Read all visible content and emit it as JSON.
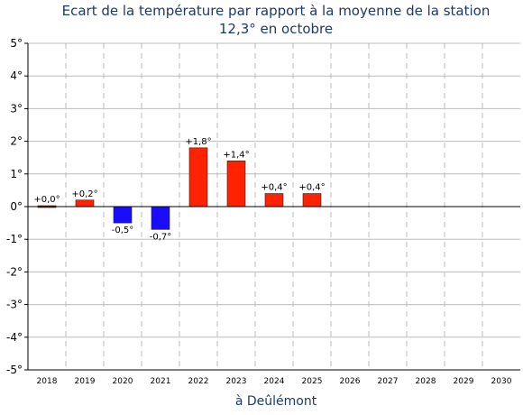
{
  "chart_data": {
    "type": "bar",
    "title": "Ecart de la température par rapport à la moyenne de la station",
    "subtitle": "12,3° en octobre",
    "xlabel": "à Deûlémont",
    "ylabel": "",
    "ylim": [
      -5,
      5
    ],
    "yticks": [
      "-5°",
      "-4°",
      "-3°",
      "-2°",
      "-1°",
      "0°",
      "1°",
      "2°",
      "3°",
      "4°",
      "5°"
    ],
    "categories": [
      "2018",
      "2019",
      "2020",
      "2021",
      "2022",
      "2023",
      "2024",
      "2025",
      "2026",
      "2027",
      "2028",
      "2029",
      "2030"
    ],
    "values": [
      0.0,
      0.2,
      -0.5,
      -0.7,
      1.8,
      1.4,
      0.4,
      0.4,
      null,
      null,
      null,
      null,
      null
    ],
    "labels": [
      "+0,0°",
      "+0,2°",
      "-0,5°",
      "-0,7°",
      "+1,8°",
      "+1,4°",
      "+0,4°",
      "+0,4°",
      "",
      "",
      "",
      "",
      ""
    ],
    "grid": true,
    "colors": {
      "positive": "#ff2200",
      "negative": "#1a0dff",
      "title": "#1a3a6e",
      "grid": "#bbbbbb"
    }
  }
}
